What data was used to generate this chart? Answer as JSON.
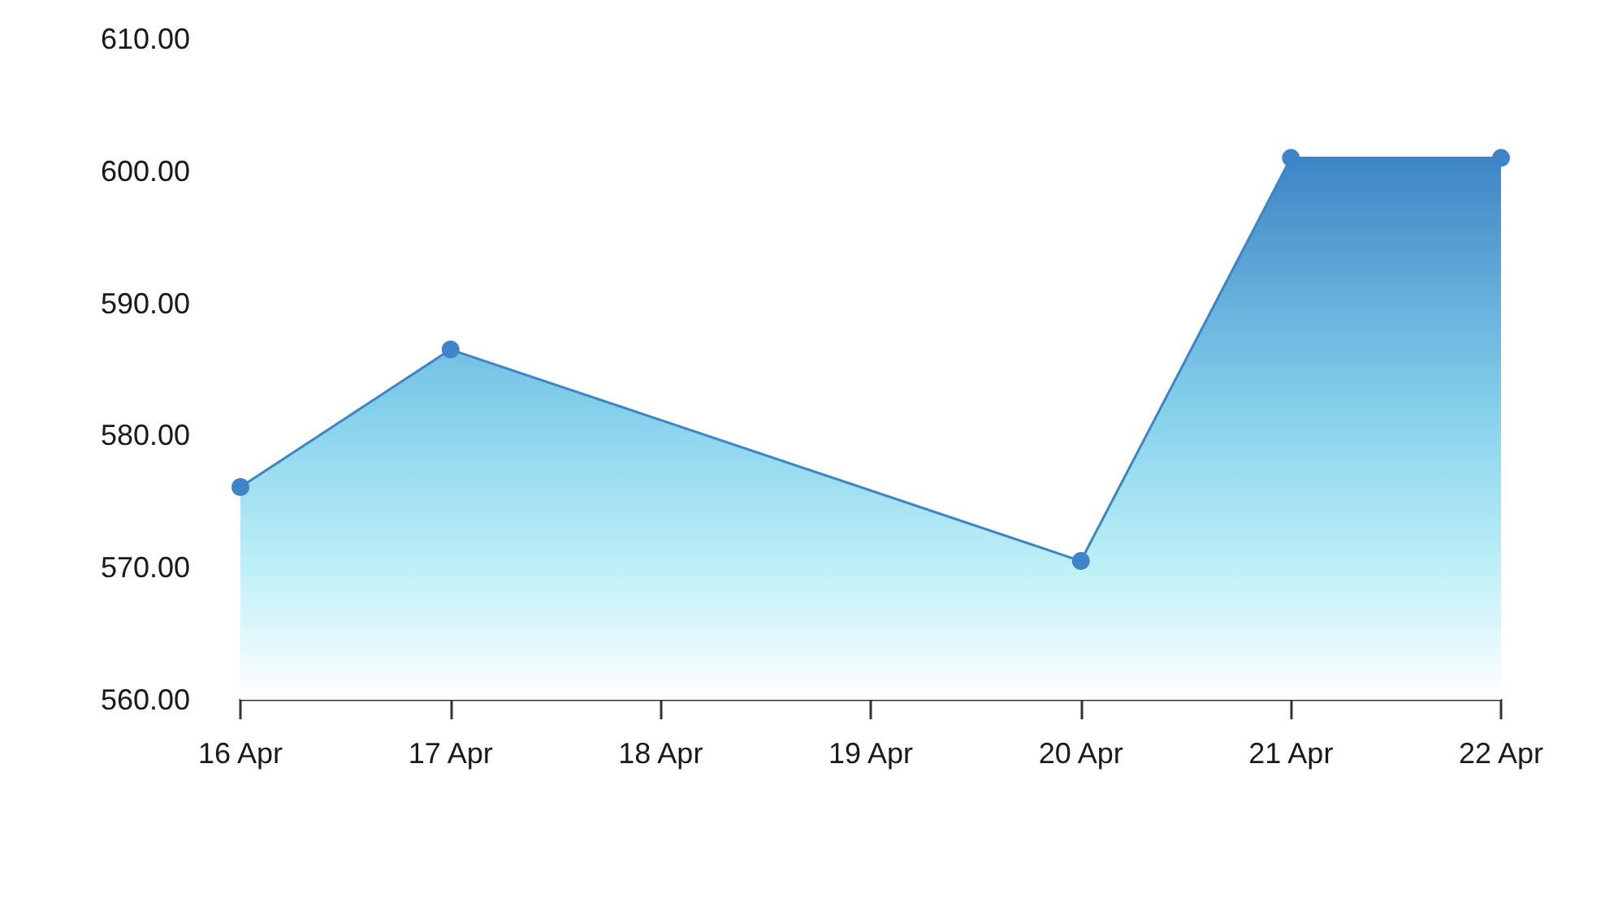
{
  "chart_data": {
    "type": "area",
    "x": [
      "--04-16",
      "--04-17",
      "--04-20",
      "--04-21",
      "--04-22"
    ],
    "series": [
      {
        "color": "#3d85c6",
        "values": [
          576.1,
          586.5,
          570.5,
          601.0,
          601.0
        ]
      }
    ],
    "xlim": [
      "--04-16",
      "--04-22"
    ],
    "xticks": [
      {
        "value": "--04-16",
        "label": "16 Apr"
      },
      {
        "value": "--04-17",
        "label": "17 Apr"
      },
      {
        "value": "--04-18",
        "label": "18 Apr"
      },
      {
        "value": "--04-19",
        "label": "19 Apr"
      },
      {
        "value": "--04-20",
        "label": "20 Apr"
      },
      {
        "value": "--04-21",
        "label": "21 Apr"
      },
      {
        "value": "--04-22",
        "label": "22 Apr"
      }
    ],
    "ylim": [
      560,
      610
    ],
    "yticks": [
      {
        "value": 560,
        "label": "560.00"
      },
      {
        "value": 570,
        "label": "570.00"
      },
      {
        "value": 580,
        "label": "580.00"
      },
      {
        "value": 590,
        "label": "590.00"
      },
      {
        "value": 600,
        "label": "600.00"
      },
      {
        "value": 610,
        "label": "610.00"
      }
    ],
    "grid": false,
    "marker": "circle",
    "line_style": "solid"
  }
}
